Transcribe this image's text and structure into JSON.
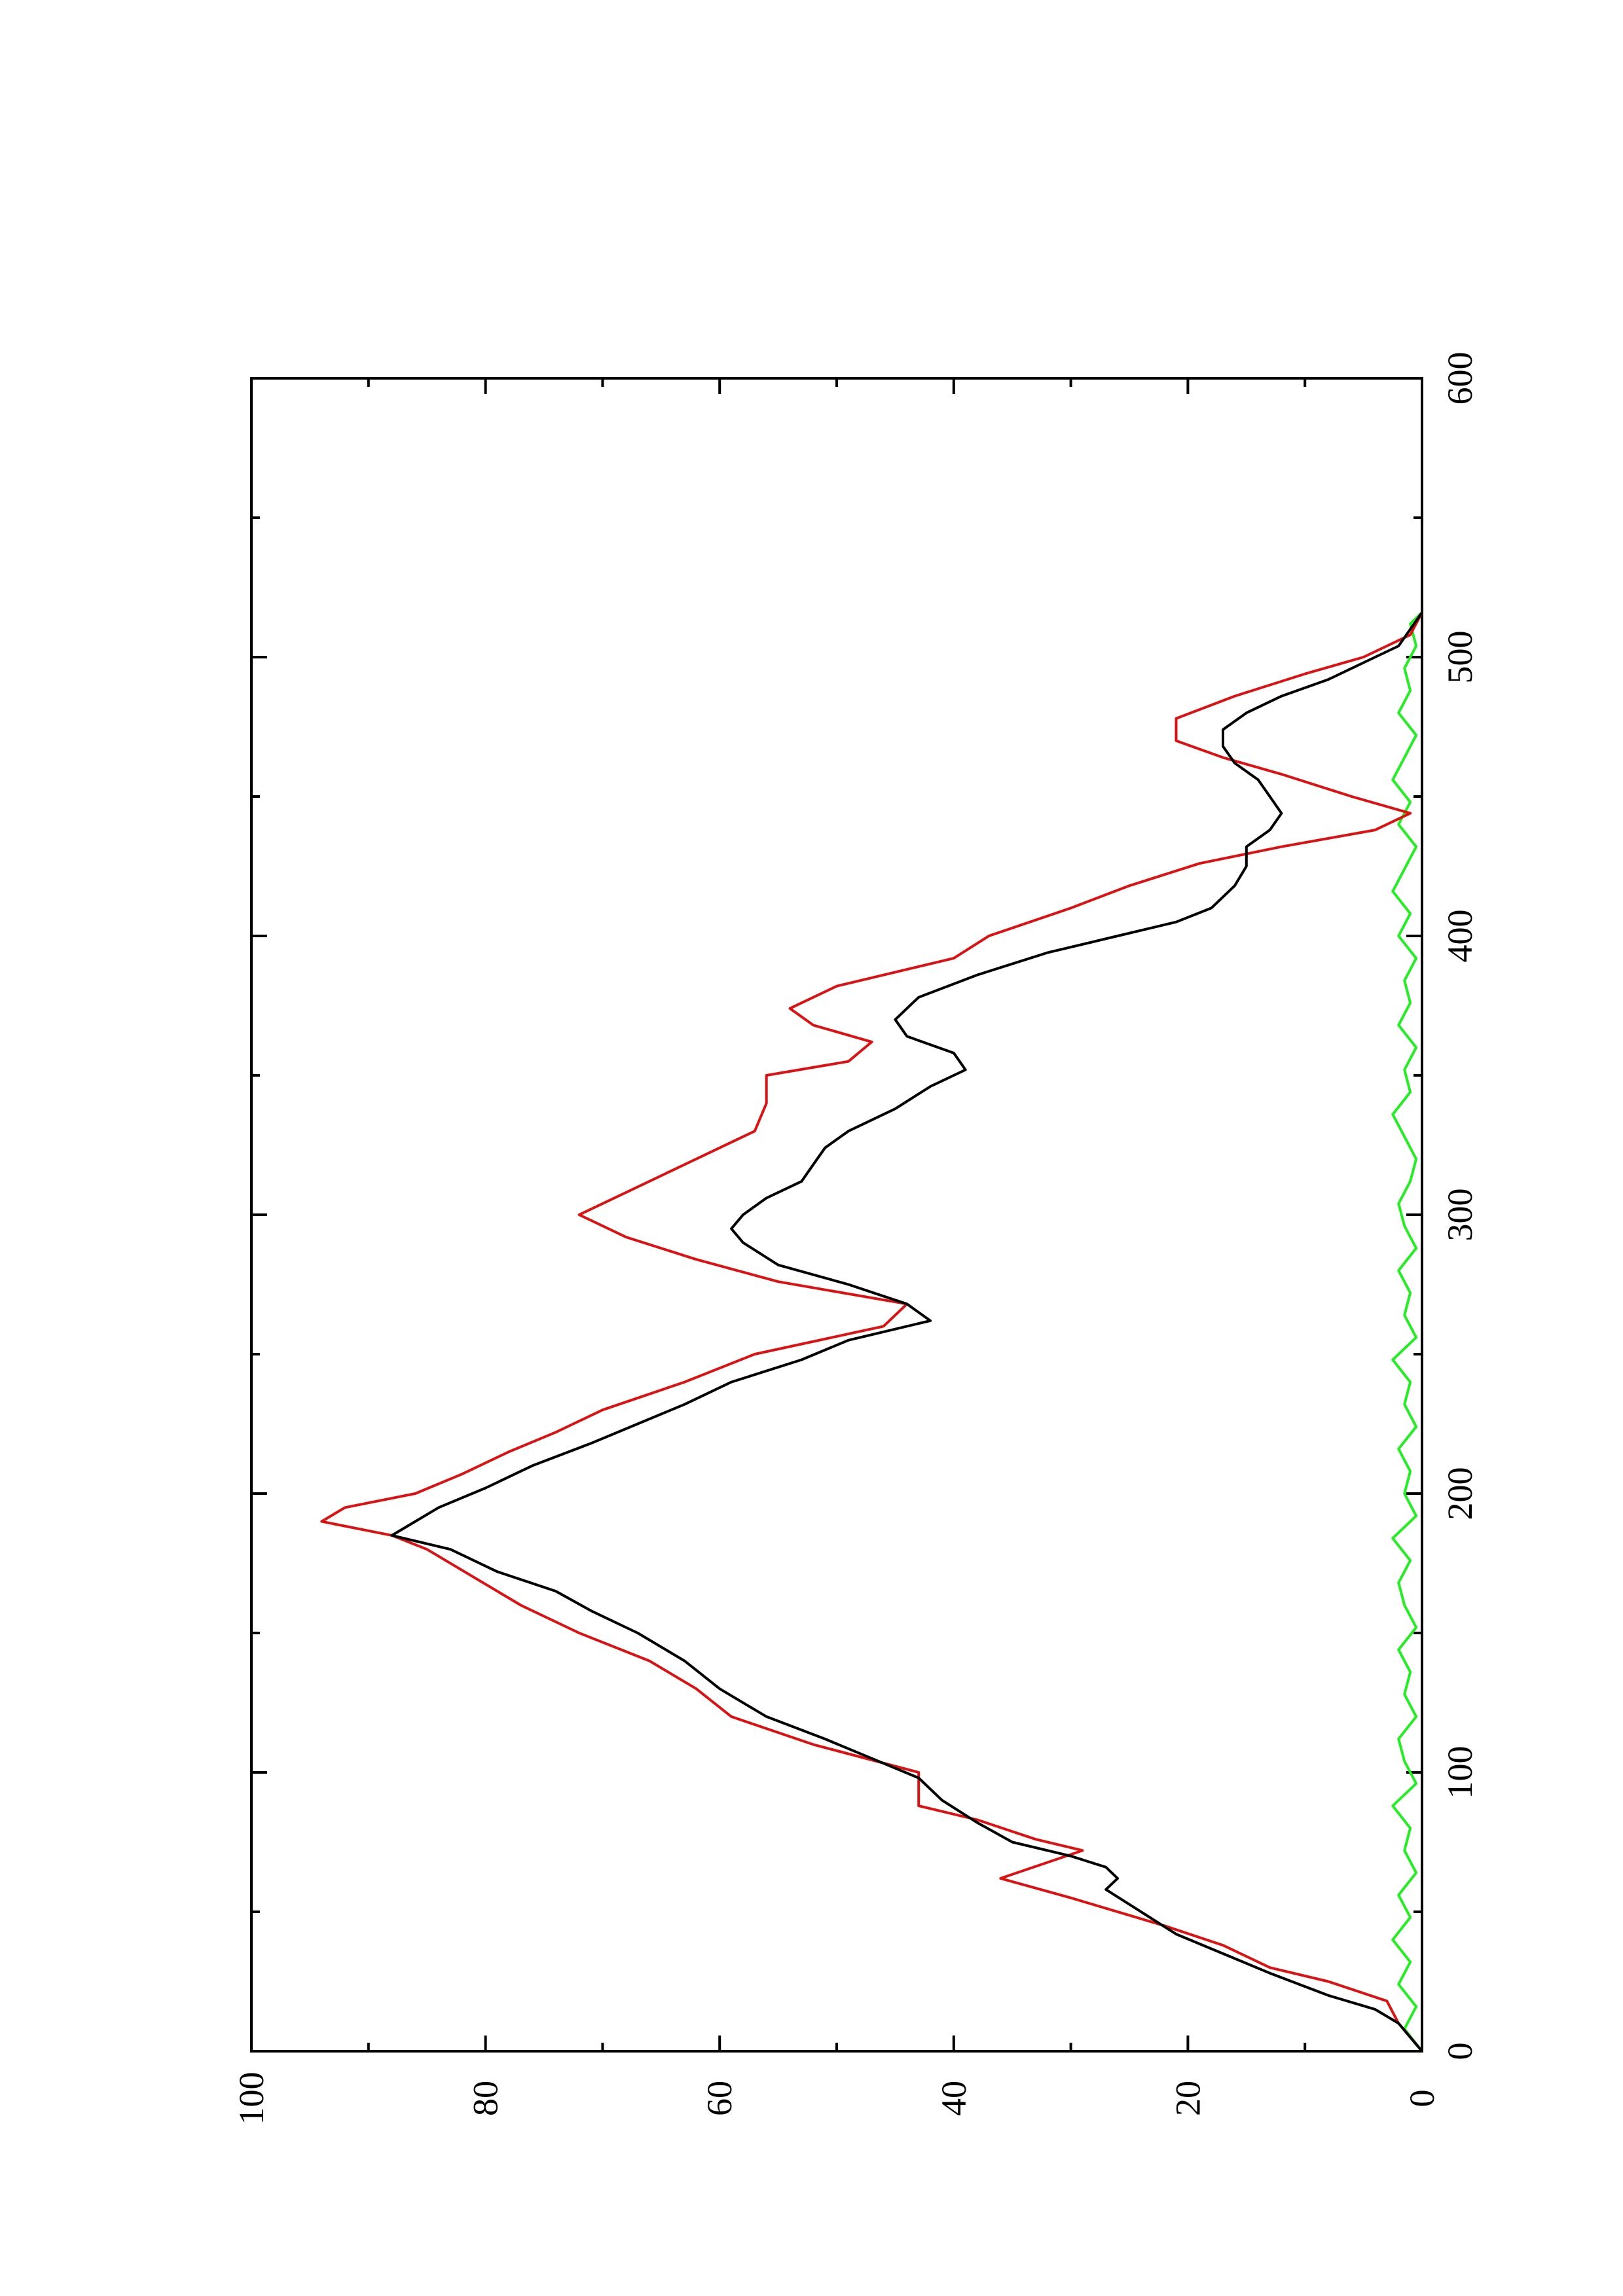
{
  "chart_data": {
    "type": "line",
    "orientation": "rotated-90-ccw",
    "title": "",
    "xlabel": "",
    "ylabel": "",
    "xlim": [
      0,
      600
    ],
    "ylim": [
      0,
      100
    ],
    "x_ticks": [
      0,
      100,
      200,
      300,
      400,
      500,
      600
    ],
    "x_tick_labels": [
      "0",
      "100",
      "200",
      "300",
      "400",
      "500",
      "600"
    ],
    "y_ticks": [
      0,
      20,
      40,
      60,
      80,
      100
    ],
    "y_tick_labels": [
      "0",
      "20",
      "40",
      "60",
      "80",
      "100"
    ],
    "grid": false,
    "legend": "none",
    "colors": {
      "red": "#dd1111",
      "black": "#000000",
      "green": "#22ee22"
    },
    "series": [
      {
        "color": "#dd1111",
        "x": [
          0,
          10,
          18,
          25,
          30,
          38,
          45,
          55,
          62,
          72,
          76,
          83,
          88,
          100,
          110,
          120,
          130,
          140,
          150,
          160,
          170,
          180,
          185,
          190,
          195,
          200,
          207,
          215,
          222,
          230,
          240,
          250,
          260,
          268,
          276,
          284,
          292,
          300,
          310,
          320,
          330,
          340,
          350,
          355,
          362,
          368,
          374,
          382,
          392,
          400,
          410,
          418,
          426,
          432,
          438,
          444,
          450,
          458,
          464,
          470,
          478,
          486,
          494,
          500,
          508,
          516
        ],
        "y": [
          0,
          2,
          3,
          8,
          13,
          17,
          22,
          30,
          36,
          29,
          33,
          38,
          43,
          43,
          52,
          59,
          62,
          66,
          72,
          77,
          81,
          85,
          88,
          94,
          92,
          86,
          82,
          78,
          74,
          70,
          63,
          57,
          46,
          44,
          55,
          62,
          68,
          72,
          67,
          62,
          57,
          56,
          56,
          49,
          47,
          52,
          54,
          50,
          40,
          37,
          30,
          25,
          19,
          12,
          4,
          1,
          6,
          12,
          17,
          21,
          21,
          16,
          10,
          5,
          1,
          0
        ]
      },
      {
        "color": "#000000",
        "x": [
          0,
          10,
          15,
          20,
          28,
          35,
          42,
          50,
          58,
          62,
          66,
          70,
          75,
          82,
          90,
          98,
          105,
          112,
          120,
          130,
          140,
          150,
          158,
          165,
          172,
          180,
          185,
          190,
          195,
          202,
          210,
          218,
          225,
          232,
          240,
          248,
          255,
          262,
          268,
          275,
          282,
          290,
          295,
          300,
          306,
          312,
          318,
          324,
          330,
          338,
          346,
          352,
          358,
          364,
          370,
          378,
          386,
          394,
          400,
          405,
          410,
          418,
          425,
          432,
          438,
          444,
          450,
          456,
          462,
          468,
          474,
          480,
          486,
          492,
          498,
          504,
          510,
          516
        ],
        "y": [
          0,
          2,
          4,
          8,
          13,
          17,
          21,
          24,
          27,
          26,
          27,
          30,
          35,
          38,
          41,
          43,
          47,
          51,
          56,
          60,
          63,
          67,
          71,
          74,
          79,
          83,
          88,
          86,
          84,
          80,
          76,
          71,
          67,
          63,
          59,
          53,
          49,
          42,
          44,
          49,
          55,
          58,
          59,
          58,
          56,
          53,
          52,
          51,
          49,
          45,
          42,
          39,
          40,
          44,
          45,
          43,
          38,
          32,
          26,
          21,
          18,
          16,
          15,
          15,
          13,
          12,
          13,
          14,
          16,
          17,
          17,
          15,
          12,
          8,
          5,
          2,
          1,
          0
        ]
      },
      {
        "color": "#22ee22",
        "x": [
          0,
          8,
          16,
          24,
          32,
          40,
          48,
          56,
          64,
          72,
          80,
          88,
          96,
          104,
          112,
          120,
          128,
          136,
          144,
          152,
          160,
          168,
          176,
          184,
          192,
          200,
          208,
          216,
          224,
          232,
          240,
          248,
          256,
          264,
          272,
          280,
          288,
          296,
          304,
          312,
          320,
          328,
          336,
          344,
          352,
          360,
          368,
          376,
          384,
          392,
          400,
          408,
          416,
          424,
          432,
          440,
          448,
          456,
          464,
          472,
          480,
          488,
          496,
          504,
          512,
          516
        ],
        "y": [
          0,
          1.5,
          0.5,
          2,
          1,
          2.5,
          1,
          2,
          0.5,
          1.5,
          1,
          2.5,
          0.5,
          1.5,
          2,
          0.5,
          1.5,
          1,
          2,
          0.5,
          1.5,
          2,
          1,
          2.5,
          0.5,
          1.5,
          1,
          2,
          0.5,
          1.5,
          1,
          2.5,
          0.5,
          1.5,
          1,
          2,
          0.5,
          1.5,
          2,
          1,
          0.5,
          1.5,
          2.5,
          1,
          1.5,
          0.5,
          2,
          1,
          1.5,
          0.5,
          2,
          1,
          2.5,
          1.5,
          0.5,
          2,
          1,
          2.5,
          1.5,
          0.5,
          2,
          1,
          1.5,
          0.5,
          1,
          0
        ]
      }
    ]
  }
}
